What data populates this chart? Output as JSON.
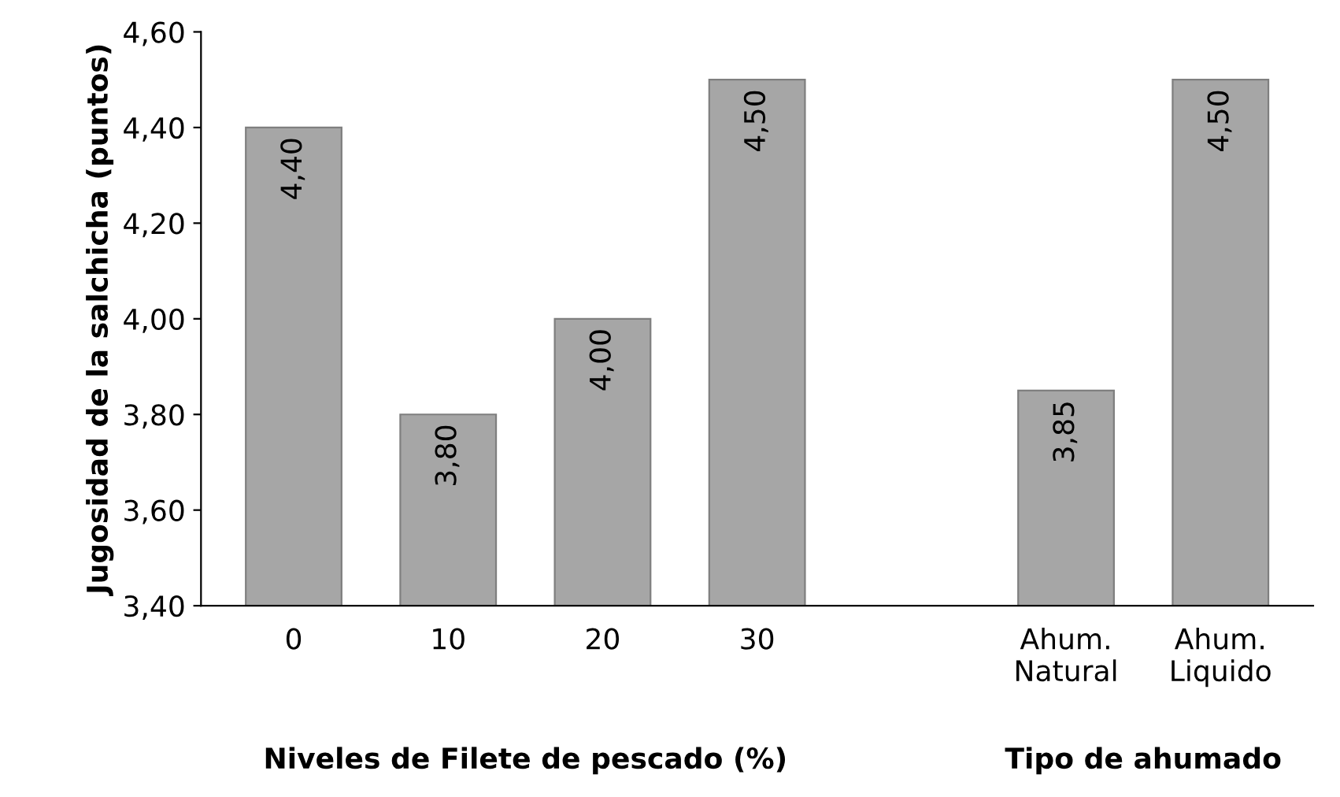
{
  "chart_data": {
    "type": "bar",
    "categories": [
      "0",
      "10",
      "20",
      "30",
      null,
      "Ahum.\nNatural",
      "Ahum.\nLiquido"
    ],
    "values": [
      4.4,
      3.8,
      4.0,
      4.5,
      null,
      3.85,
      4.5
    ],
    "value_labels": [
      "4,40",
      "3,80",
      "4,00",
      "4,50",
      null,
      "3,85",
      "4,50"
    ],
    "color": "#a6a6a6",
    "ylabel": "Jugosidad de la salchicha (puntos)",
    "xlabel": "Niveles de Filete de pescado (%)",
    "annotations": [
      "Tipo de ahumado"
    ],
    "ylim": [
      3.4,
      4.6
    ],
    "yticks": [
      {
        "value": 3.4,
        "label": "3,40"
      },
      {
        "value": 3.6,
        "label": "3,60"
      },
      {
        "value": 3.8,
        "label": "3,80"
      },
      {
        "value": 4.0,
        "label": "4,00"
      },
      {
        "value": 4.2,
        "label": "4,20"
      },
      {
        "value": 4.4,
        "label": "4,40"
      },
      {
        "value": 4.6,
        "label": "4,60"
      }
    ],
    "grid": false
  }
}
